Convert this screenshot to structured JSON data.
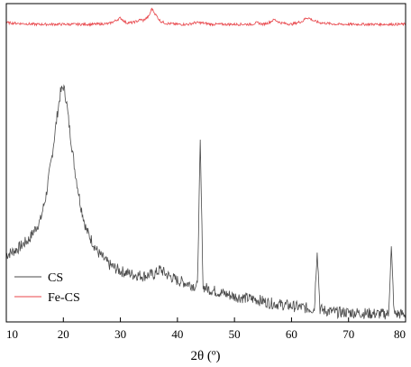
{
  "chart_data": {
    "type": "line",
    "xlabel": "2θ (º)",
    "ylabel": "",
    "xlim": [
      10,
      80
    ],
    "xticks": [
      "10",
      "20",
      "30",
      "40",
      "50",
      "60",
      "70",
      "80"
    ],
    "yticks": "none",
    "grid": false,
    "legend_placement": "bottom-left",
    "series": [
      {
        "name": "CS",
        "color": "#4a4a4a",
        "x": [
          10,
          12,
          14,
          16,
          17,
          18,
          19,
          19.5,
          20,
          20.5,
          21,
          22,
          23,
          24,
          26,
          28,
          30,
          32,
          34,
          36,
          37,
          38,
          40,
          42,
          43.5,
          44,
          44.5,
          46,
          48,
          50,
          52,
          54,
          56,
          58,
          60,
          62,
          64,
          64.5,
          65,
          66,
          68,
          70,
          72,
          74,
          76,
          77,
          77.5,
          78,
          80
        ],
        "y": [
          0.21,
          0.23,
          0.26,
          0.32,
          0.4,
          0.52,
          0.66,
          0.72,
          0.74,
          0.7,
          0.62,
          0.48,
          0.37,
          0.29,
          0.22,
          0.18,
          0.16,
          0.15,
          0.145,
          0.15,
          0.165,
          0.15,
          0.13,
          0.12,
          0.11,
          0.56,
          0.11,
          0.1,
          0.09,
          0.08,
          0.075,
          0.07,
          0.06,
          0.055,
          0.05,
          0.045,
          0.04,
          0.23,
          0.04,
          0.035,
          0.03,
          0.03,
          0.028,
          0.026,
          0.025,
          0.025,
          0.23,
          0.025,
          0.025
        ]
      },
      {
        "name": "Fe-CS",
        "color": "#e8454a",
        "x": [
          10,
          15,
          20,
          25,
          28,
          29,
          30,
          31,
          32,
          33,
          33.5,
          34,
          35,
          35.5,
          36,
          37,
          38,
          40,
          42,
          43,
          44,
          46,
          50,
          53,
          54,
          55,
          56,
          57,
          58,
          60,
          62,
          62.5,
          63,
          64,
          65,
          68,
          70,
          75,
          80
        ],
        "y": [
          0.94,
          0.935,
          0.935,
          0.935,
          0.937,
          0.945,
          0.955,
          0.94,
          0.94,
          0.945,
          0.95,
          0.947,
          0.96,
          0.985,
          0.97,
          0.945,
          0.938,
          0.935,
          0.935,
          0.94,
          0.94,
          0.935,
          0.935,
          0.935,
          0.94,
          0.935,
          0.94,
          0.95,
          0.94,
          0.935,
          0.945,
          0.955,
          0.955,
          0.945,
          0.94,
          0.935,
          0.935,
          0.935,
          0.935
        ]
      }
    ]
  }
}
